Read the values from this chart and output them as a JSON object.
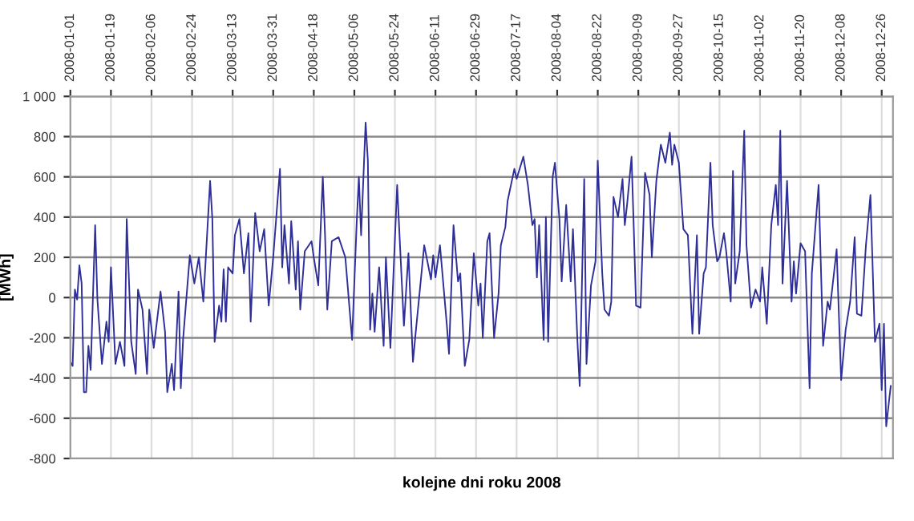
{
  "chart_data": {
    "type": "line",
    "xlabel": "kolejne dni roku 2008",
    "ylabel": "[MWh]",
    "xlim": [
      "2008-01-01",
      "2008-12-31"
    ],
    "xticks": [
      "2008-01-01",
      "2008-01-19",
      "2008-02-06",
      "2008-02-24",
      "2008-03-13",
      "2008-03-31",
      "2008-04-18",
      "2008-05-06",
      "2008-05-24",
      "2008-06-11",
      "2008-06-29",
      "2008-07-17",
      "2008-08-04",
      "2008-08-22",
      "2008-09-09",
      "2008-09-27",
      "2008-10-15",
      "2008-11-02",
      "2008-11-20",
      "2008-12-08",
      "2008-12-26"
    ],
    "ylim": [
      -800,
      1000
    ],
    "yticks": [
      -800,
      -600,
      -400,
      -200,
      0,
      200,
      400,
      600,
      800,
      {
        "value": 1000,
        "label": "1 000"
      }
    ],
    "grid": true,
    "line_style": "solid",
    "series": [
      {
        "color": "#2f2f9a",
        "x": [
          "2008-01-01",
          "2008-01-02",
          "2008-01-03",
          "2008-01-04",
          "2008-01-05",
          "2008-01-06",
          "2008-01-07",
          "2008-01-08",
          "2008-01-09",
          "2008-01-10",
          "2008-01-12",
          "2008-01-13",
          "2008-01-15",
          "2008-01-17",
          "2008-01-18",
          "2008-01-19",
          "2008-01-21",
          "2008-01-23",
          "2008-01-25",
          "2008-01-26",
          "2008-01-28",
          "2008-01-30",
          "2008-01-31",
          "2008-02-02",
          "2008-02-04",
          "2008-02-05",
          "2008-02-07",
          "2008-02-10",
          "2008-02-12",
          "2008-02-13",
          "2008-02-15",
          "2008-02-16",
          "2008-02-18",
          "2008-02-19",
          "2008-02-20",
          "2008-02-23",
          "2008-02-25",
          "2008-02-27",
          "2008-02-29",
          "2008-03-03",
          "2008-03-04",
          "2008-03-05",
          "2008-03-07",
          "2008-03-08",
          "2008-03-09",
          "2008-03-10",
          "2008-03-11",
          "2008-03-13",
          "2008-03-14",
          "2008-03-16",
          "2008-03-18",
          "2008-03-20",
          "2008-03-21",
          "2008-03-23",
          "2008-03-25",
          "2008-03-27",
          "2008-03-29",
          "2008-03-31",
          "2008-04-03",
          "2008-04-04",
          "2008-04-05",
          "2008-04-07",
          "2008-04-08",
          "2008-04-10",
          "2008-04-11",
          "2008-04-12",
          "2008-04-14",
          "2008-04-17",
          "2008-04-18",
          "2008-04-20",
          "2008-04-22",
          "2008-04-23",
          "2008-04-24",
          "2008-04-26",
          "2008-04-29",
          "2008-05-02",
          "2008-05-05",
          "2008-05-07",
          "2008-05-08",
          "2008-05-09",
          "2008-05-11",
          "2008-05-12",
          "2008-05-13",
          "2008-05-14",
          "2008-05-15",
          "2008-05-17",
          "2008-05-19",
          "2008-05-20",
          "2008-05-22",
          "2008-05-25",
          "2008-05-26",
          "2008-05-28",
          "2008-05-30",
          "2008-06-01",
          "2008-06-02",
          "2008-06-06",
          "2008-06-09",
          "2008-06-10",
          "2008-06-11",
          "2008-06-13",
          "2008-06-16",
          "2008-06-17",
          "2008-06-19",
          "2008-06-21",
          "2008-06-22",
          "2008-06-24",
          "2008-06-26",
          "2008-06-28",
          "2008-06-30",
          "2008-07-01",
          "2008-07-02",
          "2008-07-04",
          "2008-07-05",
          "2008-07-07",
          "2008-07-09",
          "2008-07-10",
          "2008-07-12",
          "2008-07-13",
          "2008-07-16",
          "2008-07-17",
          "2008-07-20",
          "2008-07-22",
          "2008-07-24",
          "2008-07-25",
          "2008-07-26",
          "2008-07-27",
          "2008-07-29",
          "2008-07-30",
          "2008-07-31",
          "2008-08-02",
          "2008-08-03",
          "2008-08-05",
          "2008-08-06",
          "2008-08-08",
          "2008-08-10",
          "2008-08-11",
          "2008-08-13",
          "2008-08-14",
          "2008-08-16",
          "2008-08-17",
          "2008-08-19",
          "2008-08-21",
          "2008-08-22",
          "2008-08-24",
          "2008-08-25",
          "2008-08-27",
          "2008-08-28",
          "2008-08-29",
          "2008-08-31",
          "2008-09-02",
          "2008-09-03",
          "2008-09-04",
          "2008-09-06",
          "2008-09-07",
          "2008-09-08",
          "2008-09-10",
          "2008-09-12",
          "2008-09-14",
          "2008-09-15",
          "2008-09-17",
          "2008-09-19",
          "2008-09-21",
          "2008-09-23",
          "2008-09-24",
          "2008-09-25",
          "2008-09-27",
          "2008-09-29",
          "2008-10-01",
          "2008-10-03",
          "2008-10-05",
          "2008-10-06",
          "2008-10-08",
          "2008-10-09",
          "2008-10-11",
          "2008-10-12",
          "2008-10-14",
          "2008-10-15",
          "2008-10-17",
          "2008-10-18",
          "2008-10-20",
          "2008-10-21",
          "2008-10-22",
          "2008-10-24",
          "2008-10-26",
          "2008-10-27",
          "2008-10-29",
          "2008-10-31",
          "2008-11-02",
          "2008-11-03",
          "2008-11-05",
          "2008-11-07",
          "2008-11-09",
          "2008-11-10",
          "2008-11-11",
          "2008-11-12",
          "2008-11-14",
          "2008-11-16",
          "2008-11-17",
          "2008-11-18",
          "2008-11-20",
          "2008-11-22",
          "2008-11-24",
          "2008-11-25",
          "2008-11-28",
          "2008-11-30",
          "2008-12-02",
          "2008-12-03",
          "2008-12-06",
          "2008-12-08",
          "2008-12-10",
          "2008-12-12",
          "2008-12-14",
          "2008-12-15",
          "2008-12-17",
          "2008-12-19",
          "2008-12-21",
          "2008-12-23",
          "2008-12-25",
          "2008-12-26",
          "2008-12-27",
          "2008-12-28",
          "2008-12-30"
        ],
        "values": [
          -320,
          -340,
          40,
          -10,
          160,
          70,
          -470,
          -470,
          -240,
          -360,
          360,
          -10,
          -330,
          -120,
          -220,
          150,
          -330,
          -220,
          -340,
          390,
          -220,
          -380,
          40,
          -60,
          -380,
          -60,
          -250,
          30,
          -170,
          -470,
          -330,
          -460,
          30,
          -450,
          -210,
          210,
          70,
          200,
          -20,
          580,
          390,
          -220,
          -40,
          -120,
          140,
          -120,
          150,
          120,
          310,
          390,
          120,
          320,
          -120,
          420,
          230,
          340,
          -40,
          200,
          640,
          150,
          360,
          70,
          380,
          40,
          280,
          -60,
          230,
          280,
          200,
          60,
          600,
          310,
          -60,
          280,
          300,
          200,
          -210,
          360,
          600,
          310,
          870,
          680,
          -160,
          20,
          -170,
          150,
          -240,
          200,
          -250,
          560,
          320,
          -140,
          220,
          -320,
          -200,
          260,
          90,
          210,
          100,
          260,
          -130,
          -280,
          360,
          80,
          120,
          -340,
          -210,
          220,
          -40,
          70,
          -200,
          280,
          320,
          -200,
          20,
          260,
          350,
          480,
          640,
          590,
          700,
          560,
          360,
          390,
          100,
          360,
          -210,
          400,
          -220,
          600,
          670,
          390,
          80,
          460,
          80,
          340,
          -220,
          -440,
          590,
          -330,
          60,
          180,
          680,
          120,
          -60,
          -90,
          -20,
          500,
          400,
          590,
          360,
          460,
          700,
          340,
          -40,
          -50,
          620,
          510,
          200,
          580,
          760,
          670,
          820,
          660,
          760,
          670,
          340,
          310,
          -180,
          310,
          -180,
          120,
          150,
          670,
          360,
          180,
          200,
          320,
          230,
          -20,
          630,
          70,
          230,
          830,
          260,
          -50,
          40,
          -20,
          150,
          -130,
          360,
          560,
          360,
          830,
          70,
          580,
          -20,
          180,
          20,
          270,
          230,
          -450,
          120,
          560,
          -240,
          -20,
          -60,
          240,
          -410,
          -160,
          -20,
          300,
          -80,
          -90,
          260,
          510,
          -220,
          -130,
          -460,
          -130,
          -640,
          -440
        ]
      }
    ]
  }
}
